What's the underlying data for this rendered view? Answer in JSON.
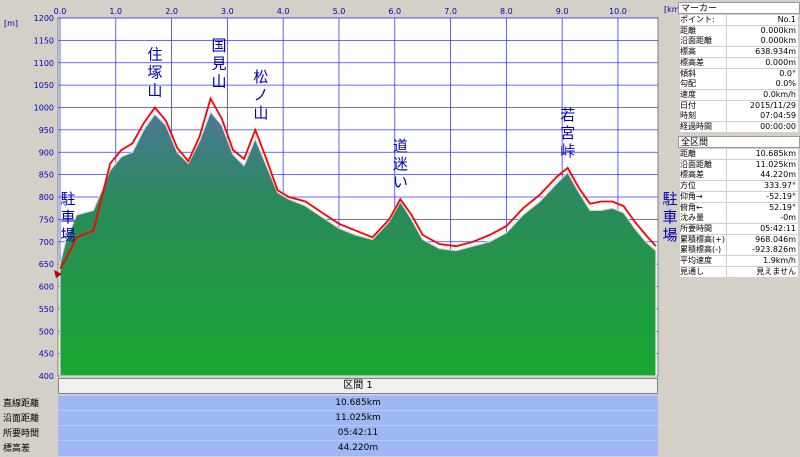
{
  "chart_data": {
    "type": "area",
    "x_unit": "[km]",
    "y_unit": "[m]",
    "xlim": [
      0,
      10.7
    ],
    "ylim": [
      400,
      1200
    ],
    "x_ticks": [
      "0.0",
      "1.0",
      "2.0",
      "3.0",
      "4.0",
      "5.0",
      "6.0",
      "7.0",
      "8.0",
      "9.0",
      "10.0"
    ],
    "y_ticks": [
      "400",
      "450",
      "500",
      "550",
      "600",
      "650",
      "700",
      "750",
      "800",
      "850",
      "900",
      "950",
      "1000",
      "1050",
      "1100",
      "1150",
      "1200"
    ],
    "grid": true,
    "series": [
      {
        "name": "",
        "kind": "profile-fill",
        "color": "#1f9a3a",
        "x": [
          0,
          0.1,
          0.3,
          0.6,
          0.9,
          1.1,
          1.3,
          1.5,
          1.7,
          1.9,
          2.1,
          2.3,
          2.5,
          2.7,
          2.9,
          3.1,
          3.3,
          3.5,
          3.7,
          3.9,
          4.1,
          4.4,
          4.7,
          5.0,
          5.3,
          5.6,
          5.9,
          6.1,
          6.3,
          6.5,
          6.8,
          7.1,
          7.4,
          7.7,
          8.0,
          8.3,
          8.6,
          8.9,
          9.1,
          9.3,
          9.5,
          9.7,
          9.9,
          10.1,
          10.3,
          10.5,
          10.68
        ],
        "y": [
          650,
          700,
          760,
          770,
          860,
          890,
          900,
          950,
          985,
          960,
          900,
          875,
          925,
          990,
          960,
          895,
          870,
          930,
          870,
          810,
          795,
          780,
          755,
          730,
          715,
          705,
          745,
          790,
          750,
          705,
          685,
          680,
          690,
          700,
          720,
          760,
          790,
          830,
          855,
          810,
          770,
          770,
          775,
          765,
          730,
          700,
          680
        ]
      },
      {
        "name": "",
        "kind": "route-line",
        "color": "#ff0000",
        "x": [
          0,
          0.1,
          0.3,
          0.6,
          0.9,
          1.1,
          1.3,
          1.5,
          1.7,
          1.9,
          2.1,
          2.3,
          2.5,
          2.7,
          2.9,
          3.1,
          3.3,
          3.5,
          3.7,
          3.9,
          4.1,
          4.4,
          4.7,
          5.0,
          5.3,
          5.6,
          5.9,
          6.1,
          6.3,
          6.5,
          6.8,
          7.1,
          7.4,
          7.7,
          8.0,
          8.3,
          8.6,
          8.9,
          9.1,
          9.3,
          9.5,
          9.7,
          9.9,
          10.1,
          10.3,
          10.5,
          10.68
        ],
        "y": [
          640,
          660,
          710,
          725,
          875,
          905,
          920,
          965,
          1000,
          970,
          910,
          880,
          935,
          1020,
          975,
          905,
          885,
          950,
          885,
          815,
          800,
          790,
          765,
          740,
          725,
          710,
          750,
          795,
          760,
          715,
          695,
          690,
          700,
          715,
          735,
          775,
          805,
          845,
          865,
          820,
          785,
          790,
          790,
          780,
          745,
          715,
          690
        ]
      }
    ],
    "annotations": [
      {
        "text": "住塚山",
        "x": 1.7,
        "y": 1000
      },
      {
        "text": "国見山",
        "x": 2.85,
        "y": 1020
      },
      {
        "text": "松ノ山",
        "x": 3.6,
        "y": 950
      },
      {
        "text": "道迷い",
        "x": 6.1,
        "y": 795
      },
      {
        "text": "若宮峠",
        "x": 9.1,
        "y": 865
      },
      {
        "text": "駐車場",
        "x": 0,
        "y": 640
      },
      {
        "text": "駐車場",
        "x": 10.68,
        "y": 690
      }
    ]
  },
  "section": {
    "label": "区間 1"
  },
  "summary": [
    {
      "label": "直線距離",
      "value": "10.685km"
    },
    {
      "label": "沿面距離",
      "value": "11.025km"
    },
    {
      "label": "所要時間",
      "value": "05:42:11"
    },
    {
      "label": "標高差",
      "value": "44.220m"
    }
  ],
  "marker_panel": {
    "title": "マーカー",
    "rows": [
      {
        "k": "ポイント:",
        "v": "No.1"
      },
      {
        "k": "距離",
        "v": "0.000km"
      },
      {
        "k": "沿面距離",
        "v": "0.000km"
      },
      {
        "k": "標高",
        "v": "638.934m"
      },
      {
        "k": "標高差",
        "v": "0.000m"
      },
      {
        "k": "傾斜",
        "v": "0.0°"
      },
      {
        "k": "勾配",
        "v": "0.0%"
      },
      {
        "k": "速度",
        "v": "0.0km/h"
      },
      {
        "k": "日付",
        "v": "2015/11/29"
      },
      {
        "k": "時刻",
        "v": "07:04:59"
      },
      {
        "k": "経過時間",
        "v": "00:00:00"
      }
    ]
  },
  "section_panel": {
    "title": "全区間",
    "rows": [
      {
        "k": "距離",
        "v": "10.685km"
      },
      {
        "k": "沿面距離",
        "v": "11.025km"
      },
      {
        "k": "標高差",
        "v": "44.220m"
      },
      {
        "k": "方位",
        "v": "333.97°"
      },
      {
        "k": "仰角→",
        "v": "-52.19°"
      },
      {
        "k": "俯角←",
        "v": "52.19°"
      },
      {
        "k": "沈み量",
        "v": "-0m"
      },
      {
        "k": "所要時間",
        "v": "05:42:11"
      },
      {
        "k": "累積標高(+)",
        "v": "968.046m"
      },
      {
        "k": "累積標高(-)",
        "v": "-923.826m"
      },
      {
        "k": "平均速度",
        "v": "1.9km/h"
      },
      {
        "k": "見通し",
        "v": "見えません"
      }
    ]
  }
}
